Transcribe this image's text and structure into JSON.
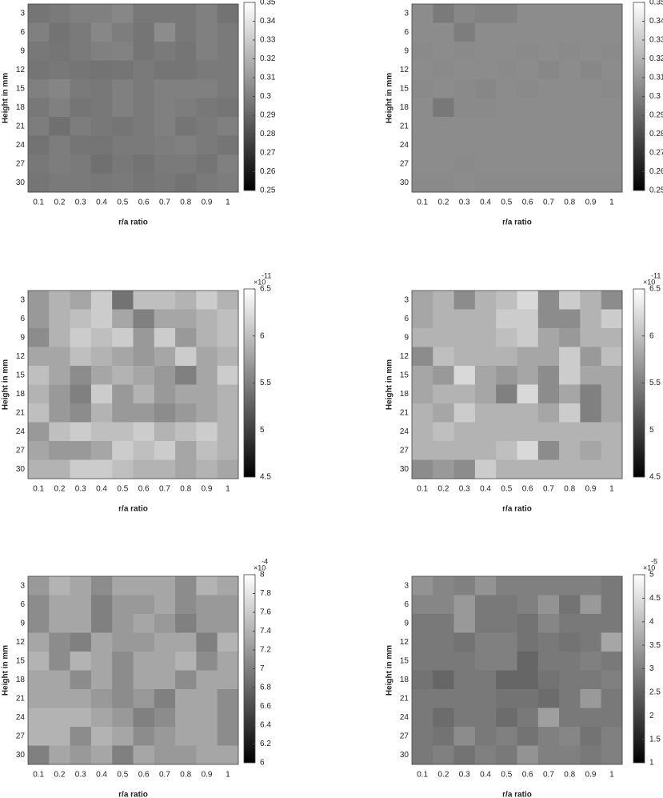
{
  "chart_data": [
    {
      "type": "heatmap",
      "xlabel": "r/a ratio",
      "ylabel": "Height in mm",
      "x": [
        0.1,
        0.2,
        0.3,
        0.4,
        0.5,
        0.6,
        0.7,
        0.8,
        0.9,
        1
      ],
      "y": [
        3,
        6,
        9,
        12,
        15,
        18,
        21,
        24,
        27,
        30
      ],
      "clim": [
        0.25,
        0.35
      ],
      "cticks": [
        0.25,
        0.26,
        0.27,
        0.28,
        0.29,
        0.3,
        0.31,
        0.32,
        0.33,
        0.34,
        0.35
      ],
      "values": [
        [
          0.296,
          0.298,
          0.3,
          0.3,
          0.303,
          0.297,
          0.297,
          0.297,
          0.3,
          0.295
        ],
        [
          0.3,
          0.295,
          0.298,
          0.303,
          0.299,
          0.296,
          0.305,
          0.297,
          0.3,
          0.298
        ],
        [
          0.297,
          0.296,
          0.298,
          0.3,
          0.301,
          0.296,
          0.298,
          0.296,
          0.3,
          0.298
        ],
        [
          0.296,
          0.297,
          0.296,
          0.295,
          0.296,
          0.298,
          0.296,
          0.296,
          0.298,
          0.298
        ],
        [
          0.3,
          0.302,
          0.298,
          0.297,
          0.3,
          0.298,
          0.3,
          0.3,
          0.3,
          0.298
        ],
        [
          0.297,
          0.3,
          0.296,
          0.297,
          0.3,
          0.298,
          0.3,
          0.299,
          0.297,
          0.296
        ],
        [
          0.299,
          0.294,
          0.299,
          0.297,
          0.296,
          0.298,
          0.3,
          0.296,
          0.298,
          0.3
        ],
        [
          0.295,
          0.299,
          0.296,
          0.296,
          0.298,
          0.298,
          0.299,
          0.3,
          0.298,
          0.296
        ],
        [
          0.297,
          0.299,
          0.298,
          0.294,
          0.297,
          0.295,
          0.298,
          0.298,
          0.296,
          0.3
        ],
        [
          0.296,
          0.298,
          0.298,
          0.297,
          0.298,
          0.296,
          0.297,
          0.295,
          0.298,
          0.299
        ]
      ]
    },
    {
      "type": "heatmap",
      "xlabel": "r/a ratio",
      "ylabel": "Height in mm",
      "x": [
        0.1,
        0.2,
        0.3,
        0.4,
        0.5,
        0.6,
        0.7,
        0.8,
        0.9,
        1
      ],
      "y": [
        3,
        6,
        9,
        12,
        15,
        18,
        21,
        24,
        27,
        30
      ],
      "clim": [
        0.25,
        0.35
      ],
      "cticks": [
        0.25,
        0.26,
        0.27,
        0.28,
        0.29,
        0.3,
        0.31,
        0.32,
        0.33,
        0.34,
        0.35
      ],
      "values": [
        [
          0.305,
          0.298,
          0.303,
          0.301,
          0.301,
          0.305,
          0.305,
          0.305,
          0.305,
          0.305
        ],
        [
          0.305,
          0.305,
          0.299,
          0.305,
          0.305,
          0.305,
          0.305,
          0.305,
          0.305,
          0.305
        ],
        [
          0.304,
          0.305,
          0.304,
          0.305,
          0.305,
          0.304,
          0.305,
          0.304,
          0.305,
          0.304
        ],
        [
          0.305,
          0.304,
          0.305,
          0.305,
          0.304,
          0.305,
          0.303,
          0.305,
          0.303,
          0.305
        ],
        [
          0.304,
          0.305,
          0.304,
          0.303,
          0.305,
          0.304,
          0.305,
          0.305,
          0.305,
          0.304
        ],
        [
          0.305,
          0.297,
          0.304,
          0.304,
          0.305,
          0.305,
          0.305,
          0.305,
          0.305,
          0.305
        ],
        [
          0.305,
          0.305,
          0.305,
          0.305,
          0.305,
          0.305,
          0.305,
          0.305,
          0.305,
          0.305
        ],
        [
          0.305,
          0.305,
          0.305,
          0.305,
          0.305,
          0.305,
          0.305,
          0.305,
          0.305,
          0.305
        ],
        [
          0.305,
          0.305,
          0.304,
          0.305,
          0.305,
          0.305,
          0.305,
          0.305,
          0.305,
          0.305
        ],
        [
          0.304,
          0.304,
          0.305,
          0.304,
          0.304,
          0.304,
          0.304,
          0.304,
          0.304,
          0.304
        ]
      ]
    },
    {
      "type": "heatmap",
      "xlabel": "r/a ratio",
      "ylabel": "Height in mm",
      "x": [
        0.1,
        0.2,
        0.3,
        0.4,
        0.5,
        0.6,
        0.7,
        0.8,
        0.9,
        1
      ],
      "y": [
        3,
        6,
        9,
        12,
        15,
        18,
        21,
        24,
        27,
        30
      ],
      "clim": [
        4.5,
        6.5
      ],
      "cticks": [
        4.5,
        5,
        5.5,
        6,
        6.5
      ],
      "scale_base": "×10",
      "scale_exponent": "-11",
      "values": [
        [
          5.7,
          5.9,
          5.8,
          6.1,
          5.4,
          6.0,
          6.0,
          5.9,
          6.1,
          5.9
        ],
        [
          5.7,
          5.9,
          6.0,
          6.1,
          5.8,
          5.5,
          5.8,
          5.8,
          5.9,
          6.0
        ],
        [
          5.6,
          5.9,
          6.1,
          6.0,
          6.1,
          5.7,
          6.1,
          5.7,
          5.9,
          6.0
        ],
        [
          5.8,
          5.8,
          6.0,
          5.9,
          5.8,
          5.7,
          5.8,
          6.1,
          5.8,
          5.9
        ],
        [
          6.0,
          5.8,
          5.6,
          5.8,
          5.9,
          5.8,
          5.7,
          5.5,
          5.8,
          6.1
        ],
        [
          5.9,
          5.7,
          5.5,
          6.1,
          5.7,
          5.9,
          5.7,
          5.8,
          5.8,
          5.9
        ],
        [
          6.0,
          5.7,
          5.6,
          5.9,
          5.7,
          5.7,
          5.6,
          5.7,
          5.8,
          5.9
        ],
        [
          5.7,
          6.0,
          6.1,
          6.0,
          6.0,
          6.1,
          5.9,
          6.0,
          6.1,
          5.9
        ],
        [
          5.8,
          5.7,
          5.7,
          5.8,
          6.1,
          6.0,
          6.1,
          5.8,
          6.0,
          5.9
        ],
        [
          5.9,
          5.9,
          6.1,
          6.1,
          6.0,
          5.9,
          5.9,
          5.8,
          5.9,
          5.8
        ]
      ]
    },
    {
      "type": "heatmap",
      "xlabel": "r/a ratio",
      "ylabel": "Height in mm",
      "x": [
        0.1,
        0.2,
        0.3,
        0.4,
        0.5,
        0.6,
        0.7,
        0.8,
        0.9,
        1
      ],
      "y": [
        3,
        6,
        9,
        12,
        15,
        18,
        21,
        24,
        27,
        30
      ],
      "clim": [
        4.5,
        6.5
      ],
      "cticks": [
        4.5,
        5,
        5.5,
        6,
        6.5
      ],
      "scale_base": "×10",
      "scale_exponent": "-11",
      "values": [
        [
          5.8,
          5.9,
          5.6,
          5.9,
          6.0,
          6.2,
          5.6,
          6.1,
          5.9,
          5.6
        ],
        [
          5.8,
          5.9,
          5.9,
          5.9,
          6.1,
          6.1,
          5.6,
          5.6,
          5.9,
          6.1
        ],
        [
          5.9,
          5.9,
          5.9,
          5.9,
          6.0,
          6.1,
          5.8,
          5.7,
          5.9,
          5.9
        ],
        [
          5.6,
          6.0,
          5.9,
          5.9,
          5.9,
          5.8,
          5.8,
          6.1,
          5.7,
          6.0
        ],
        [
          5.8,
          5.7,
          6.2,
          5.8,
          5.7,
          5.8,
          5.6,
          6.1,
          5.8,
          5.8
        ],
        [
          5.8,
          5.9,
          5.9,
          5.8,
          5.5,
          6.2,
          5.6,
          5.8,
          5.5,
          5.8
        ],
        [
          5.9,
          5.8,
          6.1,
          5.9,
          5.9,
          5.9,
          5.8,
          6.1,
          5.5,
          5.8
        ],
        [
          5.9,
          6.0,
          5.9,
          5.9,
          5.9,
          5.9,
          5.9,
          5.9,
          5.9,
          5.9
        ],
        [
          5.9,
          5.9,
          5.9,
          5.9,
          6.0,
          6.2,
          5.6,
          5.9,
          5.8,
          5.9
        ],
        [
          5.6,
          5.7,
          5.6,
          6.1,
          5.9,
          5.9,
          5.9,
          5.9,
          5.9,
          5.9
        ]
      ]
    },
    {
      "type": "heatmap",
      "xlabel": "r/a ratio",
      "ylabel": "Height in mm",
      "x": [
        0.1,
        0.2,
        0.3,
        0.4,
        0.5,
        0.6,
        0.7,
        0.8,
        0.9,
        1
      ],
      "y": [
        3,
        6,
        9,
        12,
        15,
        18,
        21,
        24,
        27,
        30
      ],
      "clim": [
        6,
        8
      ],
      "cticks": [
        6,
        6.2,
        6.4,
        6.6,
        6.8,
        7,
        7.2,
        7.4,
        7.6,
        7.8,
        8
      ],
      "scale_base": "×10",
      "scale_exponent": "-4",
      "values": [
        [
          7.2,
          7.4,
          7.3,
          7.1,
          7.3,
          7.3,
          7.3,
          7.1,
          7.4,
          7.3
        ],
        [
          7.1,
          7.3,
          7.3,
          7.0,
          7.2,
          7.2,
          7.3,
          7.1,
          7.2,
          7.2
        ],
        [
          7.1,
          7.3,
          7.3,
          7.0,
          7.2,
          7.3,
          7.2,
          7.0,
          7.2,
          7.2
        ],
        [
          7.3,
          7.1,
          7.0,
          7.3,
          7.2,
          7.2,
          7.3,
          7.3,
          7.0,
          7.4
        ],
        [
          7.4,
          7.1,
          7.4,
          7.3,
          7.1,
          7.3,
          7.3,
          7.4,
          7.1,
          7.3
        ],
        [
          7.3,
          7.3,
          7.1,
          7.3,
          7.1,
          7.3,
          7.3,
          7.1,
          7.3,
          7.3
        ],
        [
          7.3,
          7.3,
          7.3,
          7.2,
          7.1,
          7.2,
          7.0,
          7.3,
          7.3,
          7.1
        ],
        [
          7.4,
          7.4,
          7.4,
          7.3,
          7.2,
          7.0,
          7.1,
          7.3,
          7.3,
          7.1
        ],
        [
          7.4,
          7.4,
          7.1,
          7.4,
          7.3,
          7.1,
          7.2,
          7.3,
          7.3,
          7.1
        ],
        [
          7.0,
          7.3,
          7.2,
          7.3,
          7.0,
          7.3,
          7.2,
          7.2,
          7.3,
          7.3
        ]
      ]
    },
    {
      "type": "heatmap",
      "xlabel": "r/a ratio",
      "ylabel": "Height in mm",
      "x": [
        0.1,
        0.2,
        0.3,
        0.4,
        0.5,
        0.6,
        0.7,
        0.8,
        0.9,
        1
      ],
      "y": [
        3,
        6,
        9,
        12,
        15,
        18,
        21,
        24,
        27,
        30
      ],
      "clim": [
        1,
        5
      ],
      "cticks": [
        1,
        1.5,
        2,
        2.5,
        3,
        3.5,
        4,
        4.5,
        5
      ],
      "scale_base": "×10",
      "scale_exponent": "-5",
      "values": [
        [
          3.3,
          3.1,
          3.0,
          3.3,
          3.0,
          3.0,
          3.0,
          3.0,
          3.0,
          2.9
        ],
        [
          3.1,
          3.1,
          3.4,
          2.9,
          2.9,
          3.0,
          3.3,
          2.8,
          3.4,
          2.9
        ],
        [
          2.9,
          2.9,
          3.4,
          2.9,
          2.9,
          2.8,
          3.1,
          2.9,
          2.9,
          2.9
        ],
        [
          2.9,
          2.9,
          2.8,
          3.0,
          3.0,
          2.8,
          2.9,
          2.8,
          2.9,
          3.6
        ],
        [
          2.9,
          2.9,
          2.9,
          3.0,
          3.0,
          2.6,
          2.9,
          2.9,
          3.0,
          2.9
        ],
        [
          2.8,
          2.6,
          2.9,
          2.9,
          2.6,
          2.6,
          2.8,
          2.9,
          2.9,
          3.0
        ],
        [
          2.9,
          2.9,
          2.9,
          2.9,
          2.8,
          2.8,
          2.7,
          2.9,
          3.4,
          2.9
        ],
        [
          2.9,
          2.7,
          2.9,
          2.9,
          2.7,
          2.9,
          3.5,
          2.9,
          2.9,
          2.9
        ],
        [
          2.9,
          2.8,
          3.2,
          2.9,
          3.0,
          2.8,
          3.0,
          3.1,
          2.8,
          3.0
        ],
        [
          2.9,
          3.0,
          2.8,
          3.0,
          2.9,
          3.3,
          3.0,
          3.0,
          2.9,
          3.0
        ]
      ]
    }
  ]
}
